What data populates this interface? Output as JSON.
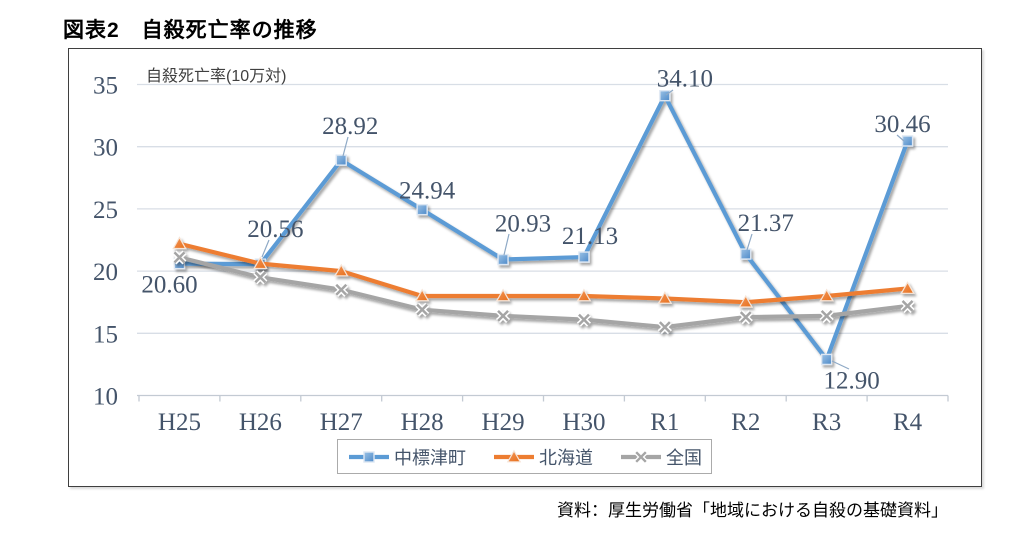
{
  "page": {
    "title": "図表2　自殺死亡率の推移",
    "source_note": "資料：厚生労働省「地域における自殺の基礎資料」"
  },
  "chart_data": {
    "type": "line",
    "title": "図表2　自殺死亡率の推移",
    "axis_title": "自殺死亡率(10万対)",
    "categories": [
      "H25",
      "H26",
      "H27",
      "H28",
      "H29",
      "H30",
      "R1",
      "R2",
      "R3",
      "R4"
    ],
    "ylim": [
      10,
      35
    ],
    "yticks": [
      10,
      15,
      20,
      25,
      30,
      35
    ],
    "grid": true,
    "legend_position": "bottom",
    "label_color": "#44546A",
    "series": [
      {
        "name": "中標津町",
        "color": "#5B9BD5",
        "marker": "square",
        "values": [
          20.6,
          20.56,
          28.92,
          24.94,
          20.93,
          21.13,
          34.1,
          21.37,
          12.9,
          30.46
        ],
        "data_labels": [
          "20.60",
          "20.56",
          "28.92",
          "24.94",
          "20.93",
          "21.13",
          "34.10",
          "21.37",
          "12.90",
          "30.46"
        ]
      },
      {
        "name": "北海道",
        "color": "#ED7D31",
        "marker": "triangle",
        "values": [
          22.2,
          20.6,
          20.0,
          18.0,
          18.0,
          18.0,
          17.8,
          17.5,
          18.0,
          18.6
        ]
      },
      {
        "name": "全国",
        "color": "#A5A5A5",
        "marker": "x",
        "values": [
          21.1,
          19.5,
          18.5,
          16.9,
          16.4,
          16.1,
          15.5,
          16.3,
          16.4,
          17.2
        ]
      }
    ],
    "source_note": "資料：厚生労働省「地域における自殺の基礎資料」"
  }
}
